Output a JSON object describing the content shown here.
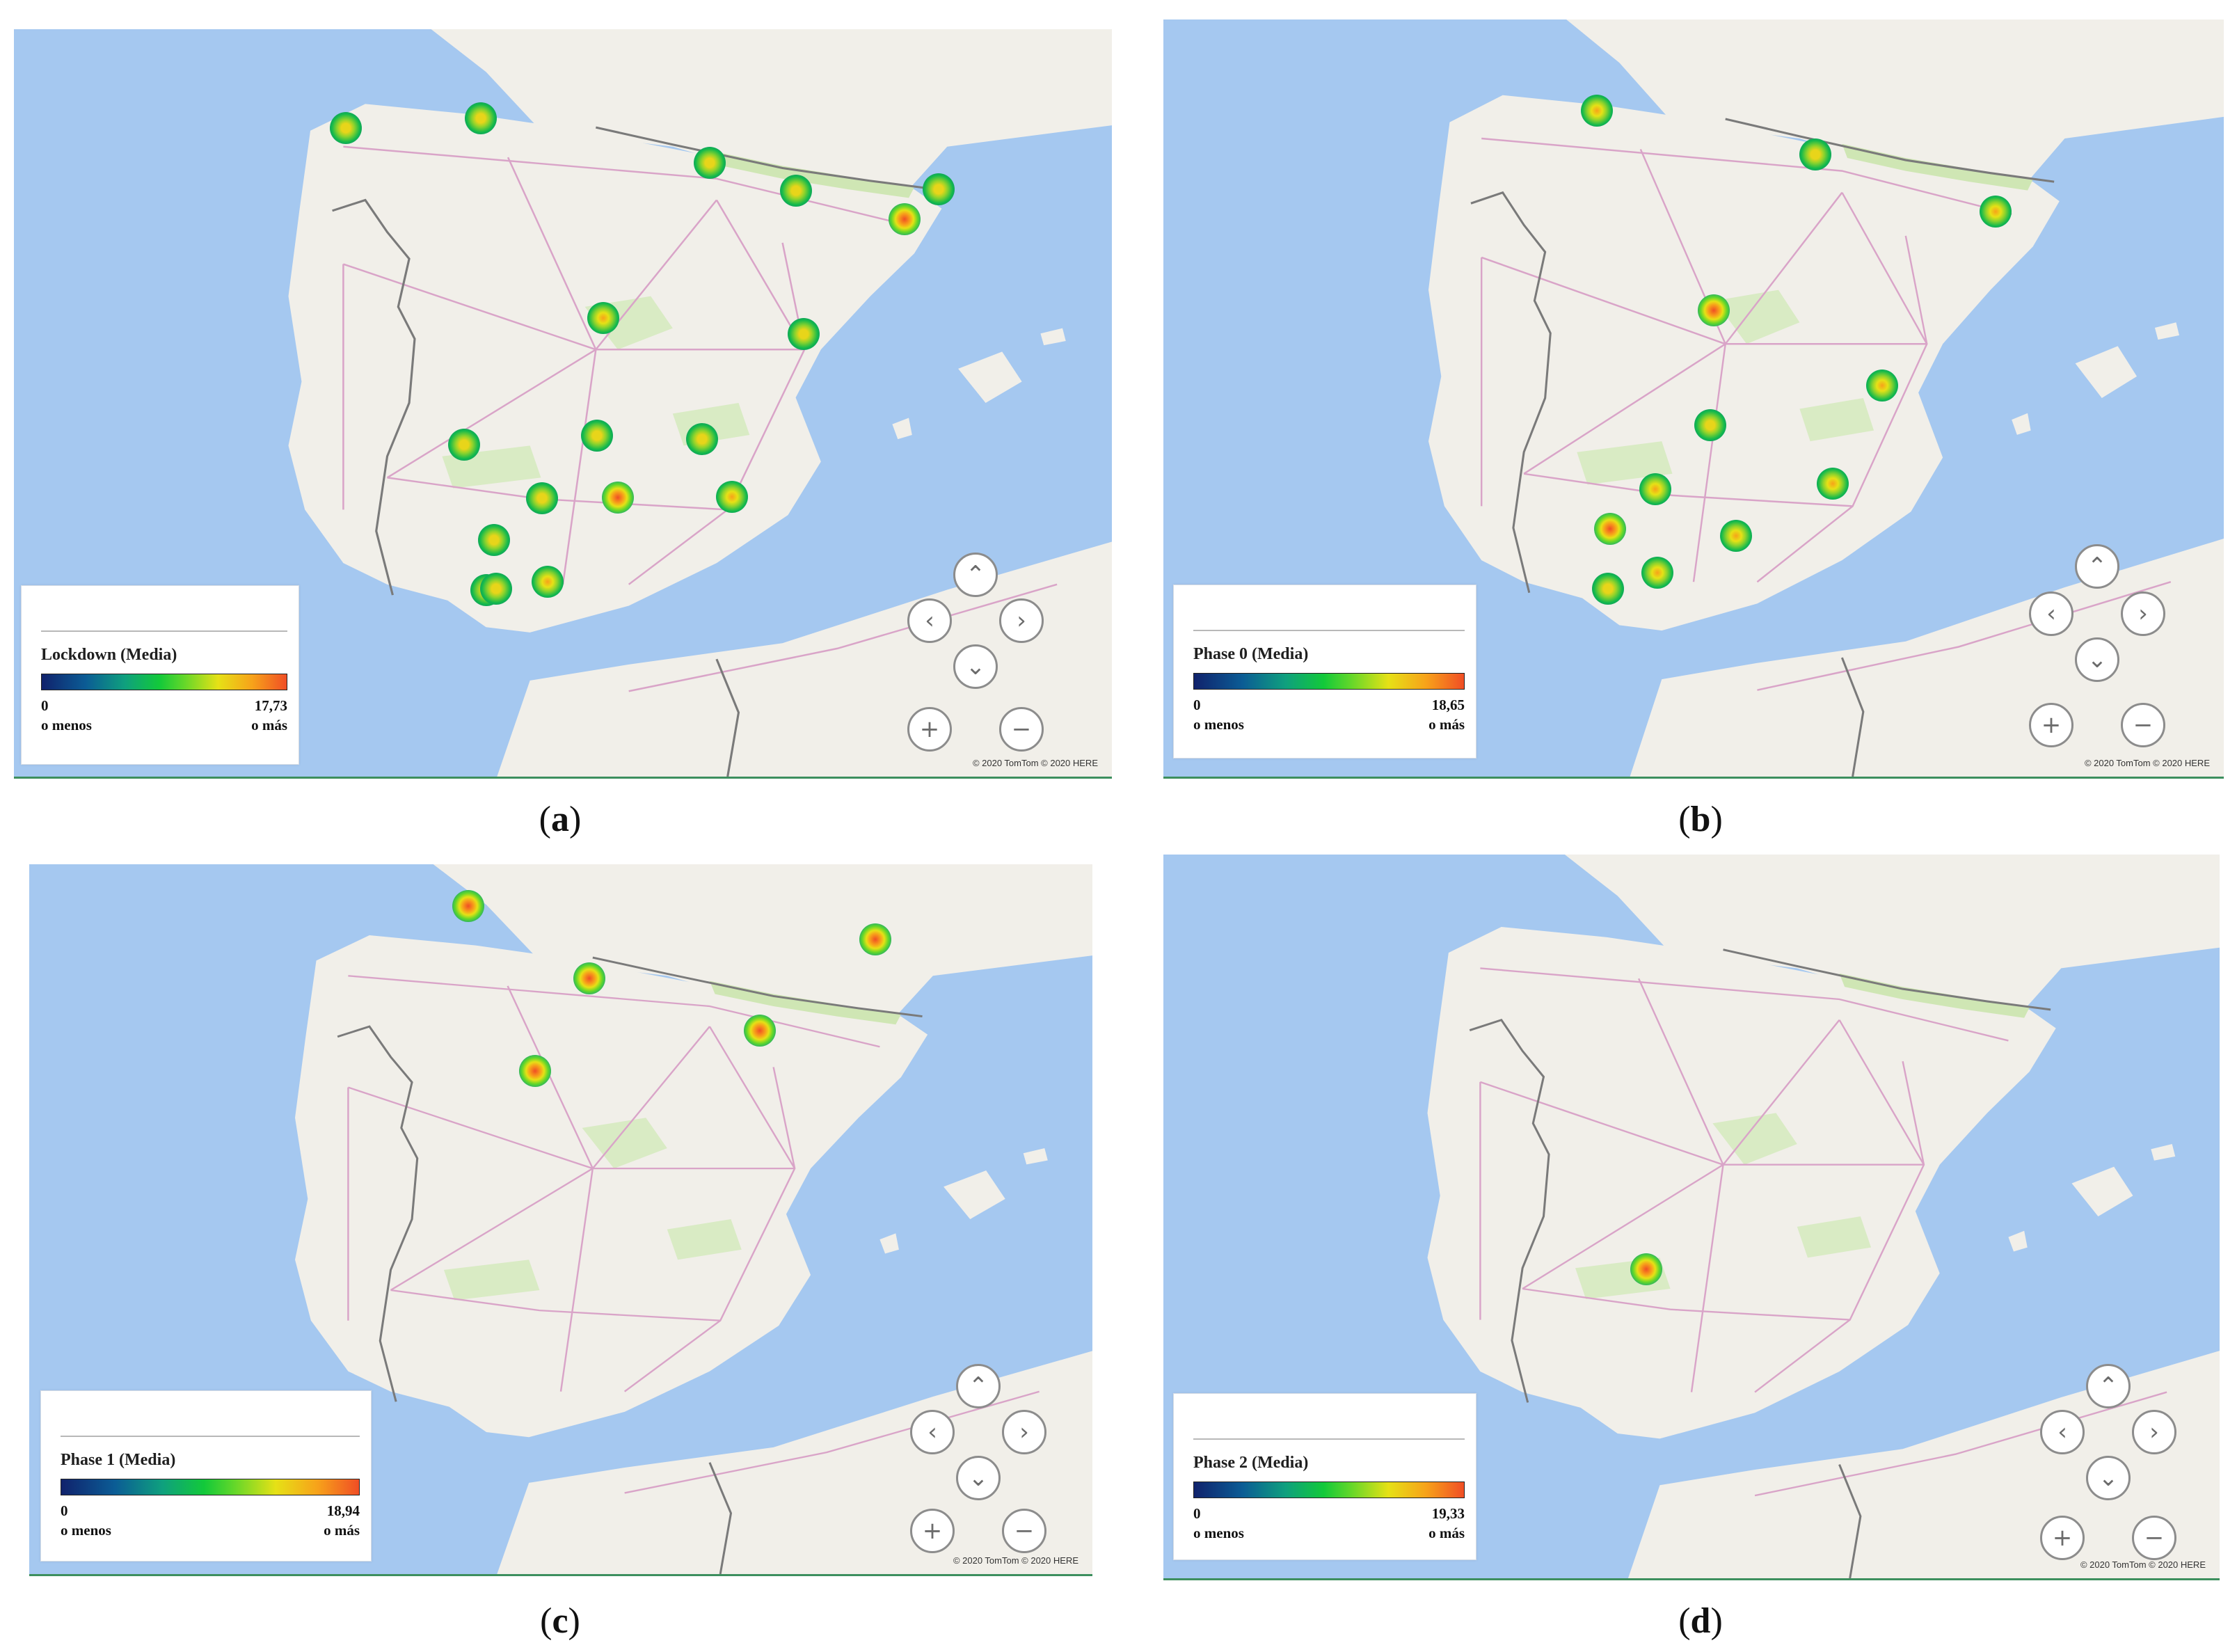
{
  "panels": [
    {
      "id": "a",
      "caption": "a",
      "legend": {
        "title": "Lockdown (Media)",
        "min": "0",
        "min_sub": "o menos",
        "max": "17,73",
        "max_sub": "o más"
      },
      "attribution": "© 2020 TomTom © 2020 HERE",
      "hotspot_count": 18
    },
    {
      "id": "b",
      "caption": "b",
      "legend": {
        "title": "Phase 0 (Media)",
        "min": "0",
        "min_sub": "o menos",
        "max": "18,65",
        "max_sub": "o más"
      },
      "attribution": "© 2020 TomTom © 2020 HERE",
      "hotspot_count": 12
    },
    {
      "id": "c",
      "caption": "c",
      "legend": {
        "title": "Phase 1 (Media)",
        "min": "0",
        "min_sub": "o menos",
        "max": "18,94",
        "max_sub": "o más"
      },
      "attribution": "© 2020 TomTom © 2020 HERE",
      "hotspot_count": 5
    },
    {
      "id": "d",
      "caption": "d",
      "legend": {
        "title": "Phase 2 (Media)",
        "min": "0",
        "min_sub": "o menos",
        "max": "19,33",
        "max_sub": "o más"
      },
      "attribution": "© 2020 TomTom © 2020 HERE",
      "hotspot_count": 1
    }
  ],
  "nav_controls": {
    "up": "⌃",
    "left": "‹",
    "right": "›",
    "down": "⌄",
    "zoom_in": "+",
    "zoom_out": "−"
  },
  "colors": {
    "sea": "#a5c8f0",
    "land": "#f1efe9",
    "forest": "#cfe6b4",
    "roads": "#d9a4c8",
    "border": "#7a7a7a",
    "ramp_low": "#10226c",
    "ramp_mid": "#12c93a",
    "ramp_high": "#f04e25"
  }
}
